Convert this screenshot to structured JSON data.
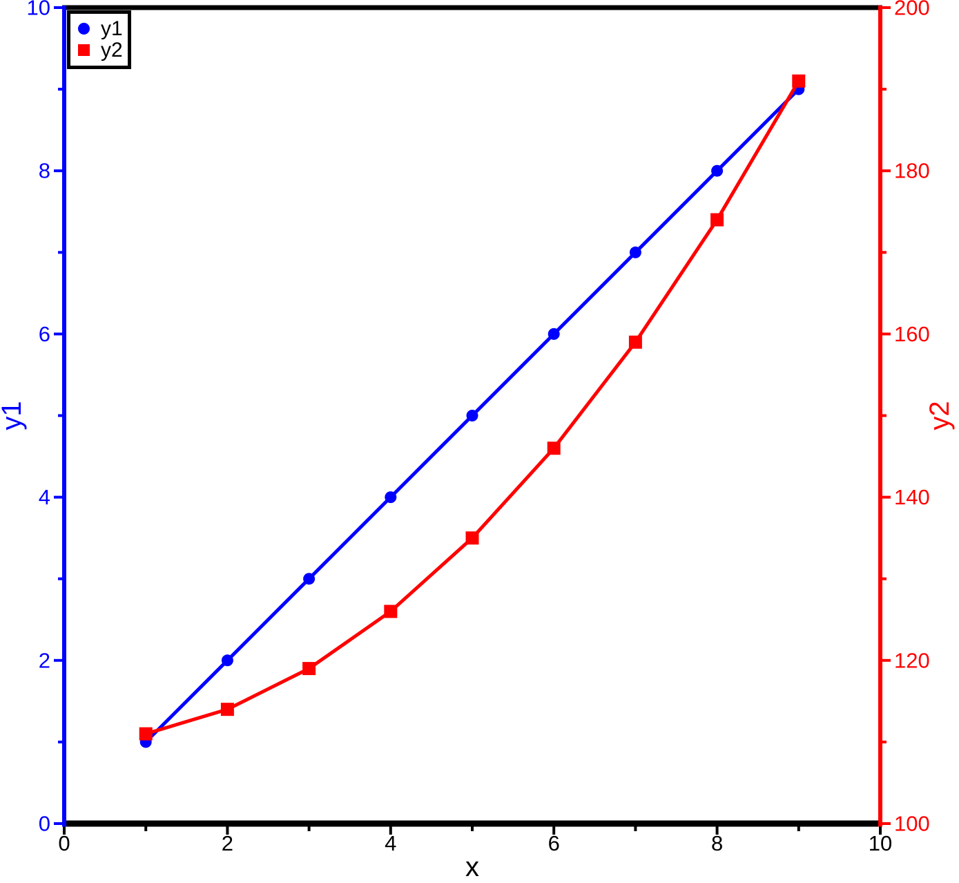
{
  "chart_data": {
    "type": "line",
    "title": "",
    "background": "#ffffff",
    "frame_color": "#000000",
    "grid": false,
    "x": [
      1,
      2,
      3,
      4,
      5,
      6,
      7,
      8,
      9
    ],
    "series": [
      {
        "name": "y1",
        "axis": "left",
        "color": "#0000ff",
        "marker": "circle",
        "values": [
          1,
          2,
          3,
          4,
          5,
          6,
          7,
          8,
          9
        ]
      },
      {
        "name": "y2",
        "axis": "right",
        "color": "#ff0000",
        "marker": "square",
        "values": [
          111,
          114,
          119,
          126,
          135,
          146,
          159,
          174,
          191
        ]
      }
    ],
    "x_axis": {
      "label": "x",
      "min": 0,
      "max": 10,
      "color": "#000000",
      "major_ticks": [
        0,
        2,
        4,
        6,
        8,
        10
      ],
      "minor_ticks": [
        1,
        3,
        5,
        7,
        9
      ]
    },
    "left_axis": {
      "label": "y1",
      "min": 0,
      "max": 10,
      "color": "#0000ff",
      "major_ticks": [
        0,
        2,
        4,
        6,
        8,
        10
      ],
      "minor_ticks": [
        1,
        3,
        5,
        7,
        9
      ]
    },
    "right_axis": {
      "label": "y2",
      "min": 100,
      "max": 200,
      "color": "#ff0000",
      "major_ticks": [
        100,
        120,
        140,
        160,
        180,
        200
      ],
      "minor_ticks": [
        110,
        130,
        150,
        170,
        190
      ]
    },
    "legend": {
      "position": "top-left",
      "border_color": "#000000",
      "text_color": "#000000",
      "labels": [
        "y1",
        "y2"
      ]
    }
  }
}
